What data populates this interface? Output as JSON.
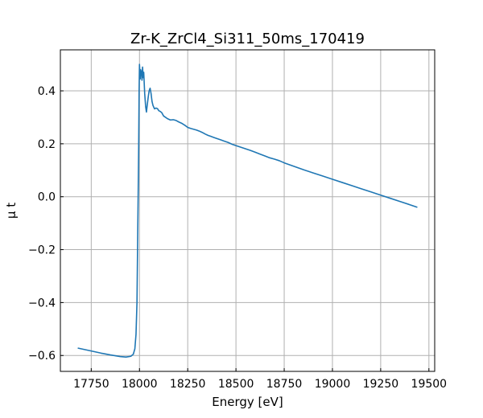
{
  "chart_data": {
    "type": "line",
    "title": "Zr-K_ZrCl4_Si311_50ms_170419",
    "xlabel": "Energy [eV]",
    "ylabel": "μ t",
    "xlim": [
      17590,
      19530
    ],
    "ylim": [
      -0.66,
      0.555
    ],
    "xticks": [
      17750,
      18000,
      18250,
      18500,
      18750,
      19000,
      19250,
      19500
    ],
    "yticks": [
      -0.6,
      -0.4,
      -0.2,
      0.0,
      0.2,
      0.4
    ],
    "ytick_labels": [
      "−0.6",
      "−0.4",
      "−0.2",
      "0.0",
      "0.2",
      "0.4"
    ],
    "grid": true,
    "ticks_direction": "in",
    "series": [
      {
        "color": "#1f77b4",
        "x": [
          17680,
          17750,
          17800,
          17850,
          17900,
          17930,
          17955,
          17968,
          17976,
          17982,
          17987,
          17990,
          17993,
          17996,
          17998,
          18000,
          18002,
          18004,
          18006,
          18008,
          18010,
          18013,
          18016,
          18019,
          18022,
          18027,
          18032,
          18036,
          18040,
          18045,
          18050,
          18055,
          18060,
          18065,
          18070,
          18078,
          18085,
          18093,
          18100,
          18108,
          18115,
          18125,
          18135,
          18145,
          18160,
          18175,
          18190,
          18205,
          18220,
          18235,
          18250,
          18265,
          18280,
          18295,
          18310,
          18325,
          18340,
          18355,
          18370,
          18385,
          18400,
          18420,
          18440,
          18460,
          18480,
          18500,
          18525,
          18550,
          18575,
          18600,
          18625,
          18650,
          18675,
          18700,
          18725,
          18750,
          18800,
          18850,
          18900,
          18950,
          19000,
          19050,
          19100,
          19150,
          19200,
          19250,
          19300,
          19350,
          19400,
          19440
        ],
        "y": [
          -0.572,
          -0.583,
          -0.591,
          -0.598,
          -0.604,
          -0.606,
          -0.603,
          -0.595,
          -0.575,
          -0.52,
          -0.4,
          -0.2,
          0.0,
          0.2,
          0.4,
          0.5,
          0.47,
          0.445,
          0.48,
          0.46,
          0.475,
          0.44,
          0.49,
          0.45,
          0.47,
          0.39,
          0.34,
          0.32,
          0.345,
          0.375,
          0.4,
          0.41,
          0.39,
          0.36,
          0.345,
          0.332,
          0.335,
          0.333,
          0.325,
          0.322,
          0.318,
          0.305,
          0.3,
          0.295,
          0.29,
          0.291,
          0.288,
          0.282,
          0.277,
          0.27,
          0.262,
          0.258,
          0.255,
          0.252,
          0.248,
          0.243,
          0.237,
          0.232,
          0.228,
          0.224,
          0.22,
          0.215,
          0.21,
          0.205,
          0.198,
          0.193,
          0.187,
          0.181,
          0.175,
          0.168,
          0.161,
          0.154,
          0.147,
          0.142,
          0.136,
          0.128,
          0.115,
          0.102,
          0.09,
          0.078,
          0.066,
          0.054,
          0.042,
          0.03,
          0.018,
          0.006,
          -0.006,
          -0.018,
          -0.03,
          -0.04
        ]
      }
    ]
  }
}
